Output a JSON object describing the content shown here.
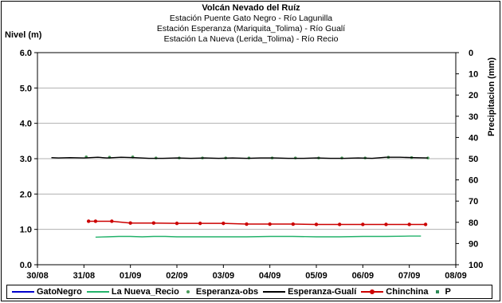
{
  "chart_data": {
    "type": "line",
    "title": "Volcán Nevado del Ruíz",
    "subtitles": [
      "Estación Puente Gato Negro - Río Lagunilla",
      "Estación Esperanza (Mariquita_Tolima) - Río Gualí",
      "Estación La Nueva (Lerida_Tolima) - Río Recio"
    ],
    "ylabel": "Nivel (m)",
    "y2label": "Precipitacion (mm)",
    "xlim": [
      0,
      9
    ],
    "ylim": [
      0,
      6
    ],
    "y2lim": [
      0,
      100
    ],
    "y2_inverted": true,
    "x_tick_labels": [
      "30/08",
      "31/08",
      "01/09",
      "02/09",
      "03/09",
      "04/09",
      "05/09",
      "06/09",
      "07/09",
      "08/09"
    ],
    "y_tick_labels": [
      "0.0",
      "1.0",
      "2.0",
      "3.0",
      "4.0",
      "5.0",
      "6.0"
    ],
    "y2_tick_labels": [
      "0",
      "10",
      "20",
      "30",
      "40",
      "50",
      "60",
      "70",
      "80",
      "90",
      "100"
    ],
    "grid": "horizontal",
    "legend_position": "bottom",
    "series": [
      {
        "name": "GatoNegro",
        "color": "#0000cc",
        "points": []
      },
      {
        "name": "La Nueva_Recio",
        "color": "#22b26a",
        "points": [
          [
            1.25,
            0.78
          ],
          [
            1.5,
            0.79
          ],
          [
            1.75,
            0.8
          ],
          [
            2.0,
            0.8
          ],
          [
            2.25,
            0.79
          ],
          [
            2.5,
            0.8
          ],
          [
            2.75,
            0.8
          ],
          [
            3.0,
            0.79
          ],
          [
            3.5,
            0.79
          ],
          [
            4.0,
            0.79
          ],
          [
            4.5,
            0.79
          ],
          [
            5.0,
            0.8
          ],
          [
            5.5,
            0.8
          ],
          [
            6.0,
            0.79
          ],
          [
            6.5,
            0.79
          ],
          [
            7.0,
            0.8
          ],
          [
            7.5,
            0.8
          ],
          [
            8.0,
            0.81
          ],
          [
            8.25,
            0.81
          ]
        ]
      },
      {
        "name": "Esperanza-obs",
        "color": "#4a9a5a",
        "points": [
          [
            1.05,
            3.05
          ],
          [
            1.55,
            3.04
          ],
          [
            2.05,
            3.05
          ],
          [
            2.55,
            3.02
          ],
          [
            3.05,
            3.02
          ],
          [
            3.55,
            3.02
          ],
          [
            4.05,
            3.02
          ],
          [
            4.55,
            3.02
          ],
          [
            5.05,
            3.02
          ],
          [
            5.55,
            3.02
          ],
          [
            6.05,
            3.02
          ],
          [
            6.55,
            3.02
          ],
          [
            7.05,
            3.02
          ],
          [
            7.55,
            3.04
          ],
          [
            8.05,
            3.03
          ],
          [
            8.4,
            3.02
          ]
        ]
      },
      {
        "name": "Esperanza-Gualí",
        "color": "#000000",
        "points": [
          [
            0.3,
            3.03
          ],
          [
            0.45,
            3.02
          ],
          [
            0.7,
            3.03
          ],
          [
            1.0,
            3.02
          ],
          [
            1.3,
            3.04
          ],
          [
            1.5,
            3.02
          ],
          [
            1.8,
            3.04
          ],
          [
            2.1,
            3.03
          ],
          [
            2.4,
            3.01
          ],
          [
            2.7,
            3.01
          ],
          [
            3.0,
            3.02
          ],
          [
            3.3,
            3.01
          ],
          [
            3.6,
            3.02
          ],
          [
            3.9,
            3.01
          ],
          [
            4.2,
            3.02
          ],
          [
            4.5,
            3.01
          ],
          [
            4.8,
            3.02
          ],
          [
            5.1,
            3.02
          ],
          [
            5.4,
            3.01
          ],
          [
            5.7,
            3.01
          ],
          [
            6.0,
            3.02
          ],
          [
            6.3,
            3.01
          ],
          [
            6.6,
            3.01
          ],
          [
            6.9,
            3.02
          ],
          [
            7.2,
            3.01
          ],
          [
            7.5,
            3.04
          ],
          [
            7.8,
            3.04
          ],
          [
            8.1,
            3.03
          ],
          [
            8.4,
            3.02
          ]
        ]
      },
      {
        "name": "Chinchina",
        "color": "#cc0000",
        "points": [
          [
            1.1,
            1.23
          ],
          [
            1.25,
            1.23
          ],
          [
            1.6,
            1.23
          ],
          [
            2.0,
            1.18
          ],
          [
            2.5,
            1.18
          ],
          [
            3.0,
            1.17
          ],
          [
            3.5,
            1.17
          ],
          [
            4.0,
            1.17
          ],
          [
            4.5,
            1.15
          ],
          [
            5.0,
            1.15
          ],
          [
            5.5,
            1.15
          ],
          [
            6.0,
            1.14
          ],
          [
            6.5,
            1.14
          ],
          [
            7.0,
            1.14
          ],
          [
            7.5,
            1.14
          ],
          [
            8.0,
            1.14
          ],
          [
            8.35,
            1.14
          ]
        ]
      },
      {
        "name": "P",
        "color": "#2e8b57",
        "points": []
      }
    ]
  }
}
